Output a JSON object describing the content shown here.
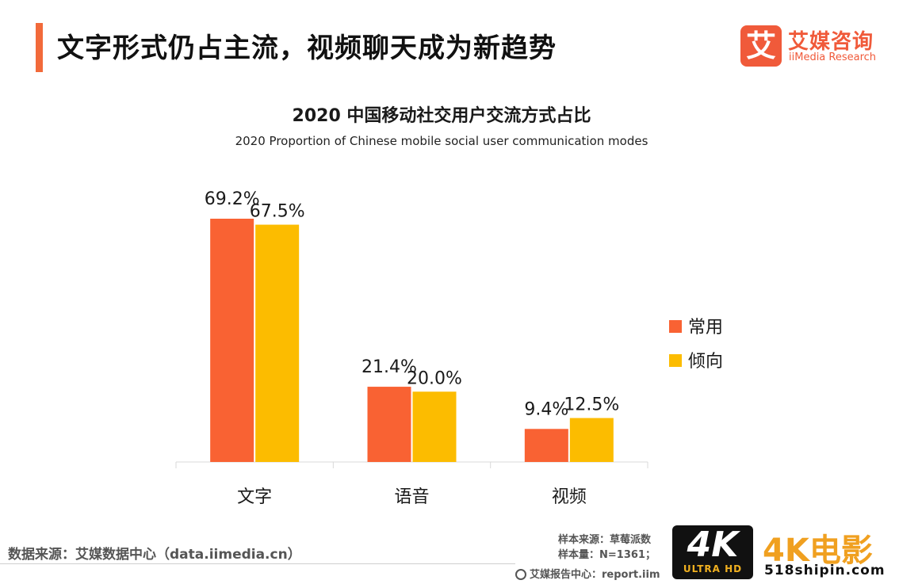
{
  "header": {
    "title": "文字形式仍占主流，视频聊天成为新趋势",
    "logo_mark": "艾",
    "logo_cn": "艾媒咨询",
    "logo_en": "iiMedia Research"
  },
  "colors": {
    "accent": "#f26a3a",
    "series_1": "#f96233",
    "series_2": "#fcbc00",
    "axis": "#d9d9d9"
  },
  "chart_data": {
    "type": "bar",
    "title": "2020 中国移动社交用户交流方式占比",
    "subtitle": "2020 Proportion of Chinese mobile social user communication modes",
    "categories": [
      "文字",
      "语音",
      "视频"
    ],
    "series": [
      {
        "name": "常用",
        "values": [
          69.2,
          21.4,
          9.4
        ],
        "labels": [
          "69.2%",
          "21.4%",
          "9.4%"
        ]
      },
      {
        "name": "倾向",
        "values": [
          67.5,
          20.0,
          12.5
        ],
        "labels": [
          "67.5%",
          "20.0%",
          "12.5%"
        ]
      }
    ],
    "ylim": [
      0,
      69.2
    ],
    "unit": "%",
    "grid": false,
    "legend": "right"
  },
  "footer": {
    "source": "数据来源：艾媒数据中心（data.iimedia.cn）",
    "sample_source": "样本来源：草莓派数",
    "sample_size": "样本量：N=1361；",
    "report_center": "艾媒报告中心：report.iim"
  },
  "watermark": {
    "badge": "4K",
    "badge_sub": "ULTRA HD",
    "text": "4K电影",
    "url": "518shipin.com"
  }
}
